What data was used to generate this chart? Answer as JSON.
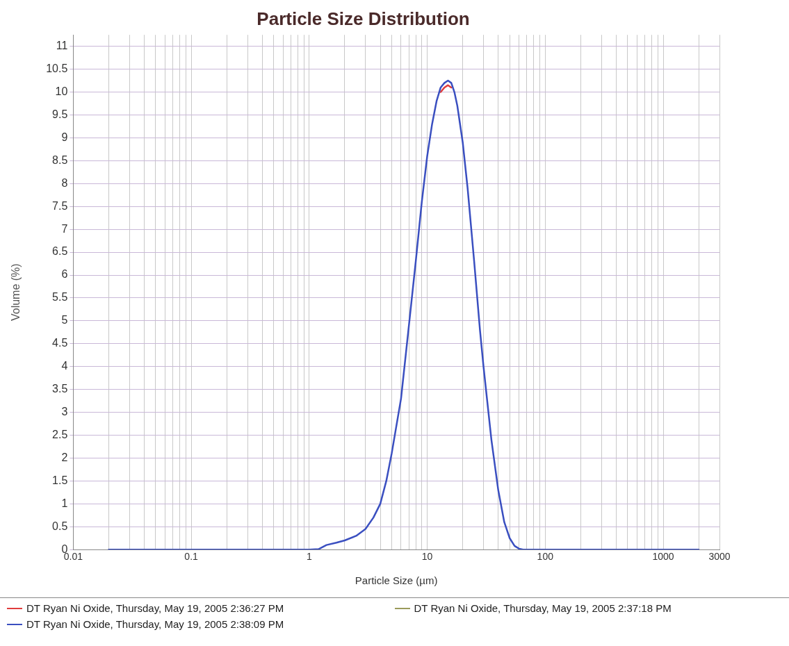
{
  "chart_data": {
    "type": "line",
    "title": "Particle Size Distribution",
    "xlabel": "Particle Size (µm)",
    "ylabel": "Volume (%)",
    "log": "x",
    "grid": true,
    "legend": "bottom",
    "marker": "none",
    "line_style": "solid",
    "xlim": [
      0.01,
      3000
    ],
    "xticks": [
      0.01,
      {
        "value": 0.02,
        "label": null
      },
      {
        "value": 0.03,
        "label": null
      },
      {
        "value": 0.04,
        "label": null
      },
      {
        "value": 0.05,
        "label": null
      },
      {
        "value": 0.06,
        "label": null
      },
      {
        "value": 0.07,
        "label": null
      },
      {
        "value": 0.08,
        "label": null
      },
      {
        "value": 0.09,
        "label": null
      },
      0.1,
      {
        "value": 0.2,
        "label": null
      },
      {
        "value": 0.3,
        "label": null
      },
      {
        "value": 0.4,
        "label": null
      },
      {
        "value": 0.5,
        "label": null
      },
      {
        "value": 0.6,
        "label": null
      },
      {
        "value": 0.7,
        "label": null
      },
      {
        "value": 0.8,
        "label": null
      },
      {
        "value": 0.9,
        "label": null
      },
      1,
      {
        "value": 2,
        "label": null
      },
      {
        "value": 3,
        "label": null
      },
      {
        "value": 4,
        "label": null
      },
      {
        "value": 5,
        "label": null
      },
      {
        "value": 6,
        "label": null
      },
      {
        "value": 7,
        "label": null
      },
      {
        "value": 8,
        "label": null
      },
      {
        "value": 9,
        "label": null
      },
      10,
      {
        "value": 20,
        "label": null
      },
      {
        "value": 30,
        "label": null
      },
      {
        "value": 40,
        "label": null
      },
      {
        "value": 50,
        "label": null
      },
      {
        "value": 60,
        "label": null
      },
      {
        "value": 70,
        "label": null
      },
      {
        "value": 80,
        "label": null
      },
      {
        "value": 90,
        "label": null
      },
      100,
      {
        "value": 200,
        "label": null
      },
      {
        "value": 300,
        "label": null
      },
      {
        "value": 400,
        "label": null
      },
      {
        "value": 500,
        "label": null
      },
      {
        "value": 600,
        "label": null
      },
      {
        "value": 700,
        "label": null
      },
      {
        "value": 800,
        "label": null
      },
      {
        "value": 900,
        "label": null
      },
      1000,
      {
        "value": 2000,
        "label": null
      },
      3000
    ],
    "ylim": [
      0,
      11.25
    ],
    "yticks": [
      0,
      0.5,
      1,
      1.5,
      2,
      2.5,
      3,
      3.5,
      4,
      4.5,
      5,
      5.5,
      6,
      6.5,
      7,
      7.5,
      8,
      8.5,
      9,
      9.5,
      10,
      10.5,
      11
    ],
    "x": [
      0.02,
      0.1,
      0.5,
      1,
      1.2,
      1.4,
      1.7,
      2,
      2.5,
      3,
      3.5,
      4,
      4.5,
      5,
      6,
      7,
      8,
      9,
      10,
      11,
      12,
      13,
      14,
      15,
      16,
      17,
      18,
      20,
      22,
      25,
      28,
      30,
      35,
      40,
      45,
      50,
      55,
      60,
      65,
      100,
      500,
      2000
    ],
    "series": [
      {
        "name": "DT Ryan Ni Oxide, Thursday, May 19, 2005 2:36:27 PM",
        "color": "#e03c3c",
        "values": [
          null,
          null,
          null,
          null,
          null,
          null,
          null,
          null,
          null,
          null,
          null,
          null,
          null,
          null,
          null,
          null,
          null,
          null,
          null,
          null,
          null,
          10.0,
          10.1,
          10.15,
          10.1,
          null,
          null,
          null,
          null,
          null,
          null,
          null,
          null,
          null,
          null,
          null,
          null,
          null,
          null,
          null,
          null,
          null
        ]
      },
      {
        "name": "DT Ryan Ni Oxide, Thursday, May 19, 2005 2:37:18 PM",
        "color": "#9a9a5a",
        "values": [
          null,
          null,
          null,
          null,
          null,
          null,
          null,
          null,
          null,
          null,
          null,
          null,
          null,
          null,
          null,
          null,
          null,
          null,
          null,
          null,
          null,
          null,
          null,
          null,
          null,
          null,
          null,
          null,
          null,
          null,
          null,
          null,
          null,
          null,
          null,
          null,
          null,
          null,
          null,
          null,
          null,
          null
        ]
      },
      {
        "name": "DT Ryan Ni Oxide, Thursday, May 19, 2005 2:38:09 PM",
        "color": "#3a4fc0",
        "values": [
          0,
          0,
          0,
          0,
          0.01,
          0.1,
          0.15,
          0.2,
          0.3,
          0.45,
          0.7,
          1.0,
          1.5,
          2.1,
          3.3,
          4.9,
          6.3,
          7.6,
          8.6,
          9.3,
          9.8,
          10.1,
          10.2,
          10.25,
          10.2,
          10.0,
          9.7,
          8.9,
          7.9,
          6.3,
          4.8,
          4.0,
          2.4,
          1.3,
          0.6,
          0.25,
          0.08,
          0.02,
          0,
          0,
          0,
          0
        ]
      }
    ]
  }
}
